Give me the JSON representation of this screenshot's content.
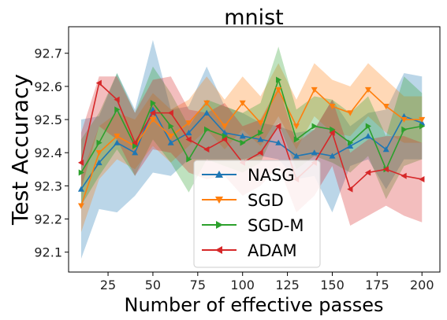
{
  "chart_data": {
    "type": "line",
    "title": "mnist",
    "xlabel": "Number of effective passes",
    "ylabel": "Test Accuracy",
    "xlim": [
      3,
      210
    ],
    "ylim": [
      92.04,
      92.78
    ],
    "xticks": [
      25,
      50,
      75,
      100,
      125,
      150,
      175,
      200
    ],
    "yticks": [
      92.1,
      92.2,
      92.3,
      92.4,
      92.5,
      92.6,
      92.7
    ],
    "grid": false,
    "legend_position": "lower-center",
    "x": [
      10,
      20,
      30,
      40,
      50,
      60,
      70,
      80,
      90,
      100,
      110,
      120,
      130,
      140,
      150,
      160,
      170,
      180,
      190,
      200
    ],
    "series": [
      {
        "name": "NASG",
        "color": "#1f77b4",
        "marker": "triangle-up",
        "values": [
          92.29,
          92.37,
          92.43,
          92.4,
          92.53,
          92.43,
          92.46,
          92.52,
          92.46,
          92.45,
          92.44,
          92.43,
          92.39,
          92.4,
          92.39,
          92.42,
          92.45,
          92.41,
          92.51,
          92.49
        ],
        "lower": [
          92.08,
          92.23,
          92.22,
          92.27,
          92.34,
          92.33,
          92.38,
          92.38,
          92.38,
          92.38,
          92.39,
          92.38,
          92.32,
          92.33,
          92.22,
          92.36,
          92.38,
          92.29,
          92.38,
          92.38
        ],
        "upper": [
          92.5,
          92.51,
          92.64,
          92.53,
          92.74,
          92.53,
          92.54,
          92.66,
          92.54,
          92.52,
          92.49,
          92.48,
          92.46,
          92.47,
          92.56,
          92.48,
          92.52,
          92.53,
          92.64,
          92.63
        ]
      },
      {
        "name": "SGD",
        "color": "#ff7f0e",
        "marker": "triangle-down",
        "values": [
          92.24,
          92.4,
          92.45,
          92.42,
          92.5,
          92.45,
          92.49,
          92.55,
          92.48,
          92.55,
          92.49,
          92.59,
          92.48,
          92.59,
          92.54,
          92.52,
          92.59,
          92.54,
          92.5,
          92.5
        ],
        "lower": [
          92.16,
          92.32,
          92.38,
          92.35,
          92.42,
          92.37,
          92.42,
          92.47,
          92.41,
          92.47,
          92.42,
          92.51,
          92.41,
          92.51,
          92.46,
          92.45,
          92.51,
          92.46,
          92.43,
          92.43
        ],
        "upper": [
          92.33,
          92.48,
          92.52,
          92.5,
          92.58,
          92.53,
          92.56,
          92.63,
          92.56,
          92.63,
          92.57,
          92.67,
          92.56,
          92.67,
          92.62,
          92.6,
          92.67,
          92.62,
          92.57,
          92.57
        ]
      },
      {
        "name": "SGD-M",
        "color": "#2ca02c",
        "marker": "triangle-right",
        "values": [
          92.34,
          92.43,
          92.53,
          92.42,
          92.55,
          92.48,
          92.38,
          92.47,
          92.45,
          92.43,
          92.46,
          92.62,
          92.44,
          92.48,
          92.47,
          92.43,
          92.48,
          92.35,
          92.47,
          92.48
        ],
        "lower": [
          92.24,
          92.33,
          92.41,
          92.33,
          92.44,
          92.37,
          92.28,
          92.38,
          92.36,
          92.34,
          92.37,
          92.49,
          92.35,
          92.39,
          92.37,
          92.34,
          92.39,
          92.26,
          92.36,
          92.38
        ],
        "upper": [
          92.44,
          92.52,
          92.64,
          92.52,
          92.66,
          92.58,
          92.48,
          92.56,
          92.54,
          92.52,
          92.55,
          92.72,
          92.53,
          92.57,
          92.56,
          92.52,
          92.57,
          92.45,
          92.63,
          92.58
        ]
      },
      {
        "name": "ADAM",
        "color": "#d62728",
        "marker": "triangle-left",
        "values": [
          92.37,
          92.61,
          92.56,
          92.43,
          92.52,
          92.52,
          92.44,
          92.41,
          92.44,
          92.37,
          92.4,
          92.48,
          92.32,
          92.37,
          92.46,
          92.29,
          92.34,
          92.35,
          92.33,
          92.32
        ],
        "lower": [
          92.29,
          92.48,
          92.44,
          92.33,
          92.41,
          92.4,
          92.34,
          92.32,
          92.33,
          92.27,
          92.3,
          92.36,
          92.22,
          92.27,
          92.36,
          92.18,
          92.21,
          92.24,
          92.21,
          92.19
        ],
        "upper": [
          92.46,
          92.63,
          92.63,
          92.52,
          92.62,
          92.63,
          92.53,
          92.52,
          92.55,
          92.48,
          92.5,
          92.6,
          92.43,
          92.47,
          92.56,
          92.4,
          92.44,
          92.45,
          92.45,
          92.43
        ]
      }
    ]
  }
}
